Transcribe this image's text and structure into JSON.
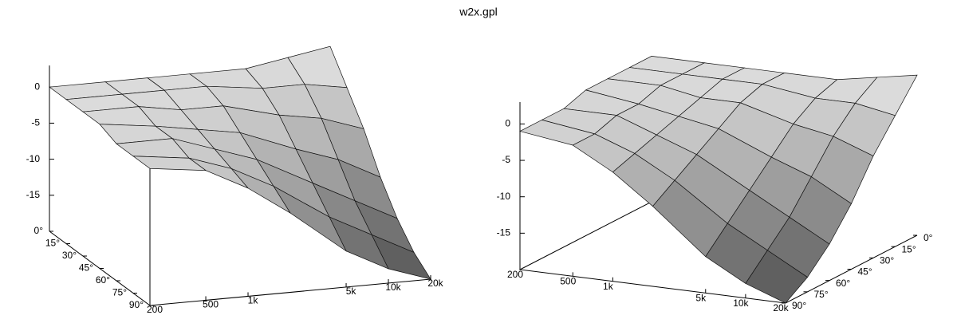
{
  "title": "w2x.gpl",
  "chart_data": [
    {
      "type": "surface",
      "xlog": true,
      "x": [
        200,
        500,
        1000,
        2000,
        5000,
        10000,
        20000
      ],
      "y": [
        0,
        15,
        30,
        45,
        60,
        75,
        90
      ],
      "z": [
        [
          0,
          0,
          0,
          0,
          0,
          1,
          2
        ],
        [
          0,
          0,
          0,
          0,
          -1,
          -1,
          -2
        ],
        [
          0,
          0,
          -1,
          -1,
          -3,
          -4,
          -6
        ],
        [
          0,
          -1,
          -2,
          -3,
          -6,
          -8,
          -11
        ],
        [
          -1,
          -1,
          -3,
          -5,
          -9,
          -12,
          -15
        ],
        [
          -1,
          -2,
          -4,
          -7,
          -12,
          -15,
          -18
        ],
        [
          -1,
          -2,
          -5,
          -9,
          -15,
          -18,
          -20
        ]
      ],
      "xlim": [
        200,
        20000
      ],
      "xticks": [
        200,
        500,
        {
          "value": 1000,
          "label": "1k"
        },
        {
          "value": 5000,
          "label": "5k"
        },
        {
          "value": 10000,
          "label": "10k"
        },
        {
          "value": 20000,
          "label": "20k"
        }
      ],
      "ylim": [
        0,
        90
      ],
      "yticks": [
        {
          "value": 0,
          "label": "0°"
        },
        {
          "value": 15,
          "label": "15°"
        },
        {
          "value": 30,
          "label": "30°"
        },
        {
          "value": 45,
          "label": "45°"
        },
        {
          "value": 60,
          "label": "60°"
        },
        {
          "value": 75,
          "label": "75°"
        },
        {
          "value": 90,
          "label": "90°"
        }
      ],
      "zlim": [
        -20,
        3
      ],
      "zticks": [
        0,
        -5,
        -10,
        -15
      ]
    },
    {
      "type": "surface",
      "xlog": true,
      "x": [
        200,
        500,
        1000,
        2000,
        5000,
        10000,
        20000
      ],
      "y": [
        0,
        15,
        30,
        45,
        60,
        75,
        90
      ],
      "z": [
        [
          0,
          0,
          0,
          0,
          0,
          1,
          2
        ],
        [
          0,
          0,
          0,
          0,
          -1,
          -1,
          -2
        ],
        [
          0,
          0,
          -1,
          -1,
          -3,
          -4,
          -6
        ],
        [
          0,
          -1,
          -2,
          -3,
          -6,
          -8,
          -11
        ],
        [
          -1,
          -1,
          -3,
          -5,
          -9,
          -12,
          -15
        ],
        [
          -1,
          -2,
          -4,
          -7,
          -12,
          -15,
          -18
        ],
        [
          -1,
          -2,
          -5,
          -9,
          -15,
          -18,
          -20
        ]
      ],
      "xlim": [
        200,
        20000
      ],
      "xticks": [
        200,
        500,
        {
          "value": 1000,
          "label": "1k"
        },
        {
          "value": 5000,
          "label": "5k"
        },
        {
          "value": 10000,
          "label": "10k"
        },
        {
          "value": 20000,
          "label": "20k"
        }
      ],
      "ylim": [
        0,
        90
      ],
      "yticks": [
        {
          "value": 0,
          "label": "0°"
        },
        {
          "value": 15,
          "label": "15°"
        },
        {
          "value": 30,
          "label": "30°"
        },
        {
          "value": 45,
          "label": "45°"
        },
        {
          "value": 60,
          "label": "60°"
        },
        {
          "value": 75,
          "label": "75°"
        },
        {
          "value": 90,
          "label": "90°"
        }
      ],
      "zlim": [
        -20,
        3
      ],
      "zticks": [
        0,
        -5,
        -10,
        -15
      ]
    }
  ]
}
